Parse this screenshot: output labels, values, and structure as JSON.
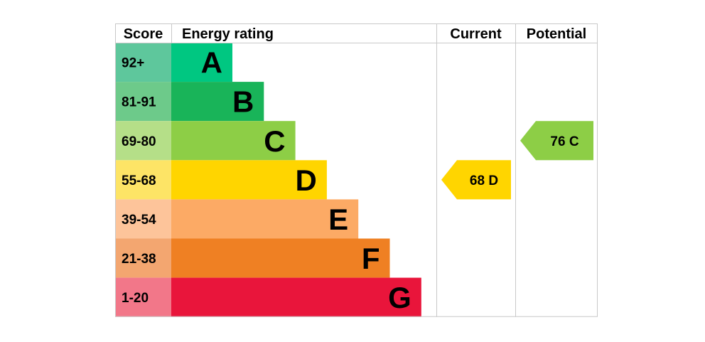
{
  "chart_data": {
    "type": "bar",
    "headers": {
      "score": "Score",
      "energy_rating": "Energy rating",
      "current": "Current",
      "potential": "Potential"
    },
    "bands": [
      {
        "letter": "A",
        "score_range": "92+",
        "color": "#00c781",
        "score_bg": "#5ec79c"
      },
      {
        "letter": "B",
        "score_range": "81-91",
        "color": "#19b459",
        "score_bg": "#6dca8a"
      },
      {
        "letter": "C",
        "score_range": "69-80",
        "color": "#8dce46",
        "score_bg": "#b5df88"
      },
      {
        "letter": "D",
        "score_range": "55-68",
        "color": "#ffd500",
        "score_bg": "#fde466"
      },
      {
        "letter": "E",
        "score_range": "39-54",
        "color": "#fcaa65",
        "score_bg": "#fdc49a"
      },
      {
        "letter": "F",
        "score_range": "21-38",
        "color": "#ef8023",
        "score_bg": "#f3a670"
      },
      {
        "letter": "G",
        "score_range": "1-20",
        "color": "#e9153b",
        "score_bg": "#f27789"
      }
    ],
    "current": {
      "value": 68,
      "band": "D",
      "label": "68  D",
      "color": "#ffd500"
    },
    "potential": {
      "value": 76,
      "band": "C",
      "label": "76  C",
      "color": "#8dce46"
    }
  }
}
